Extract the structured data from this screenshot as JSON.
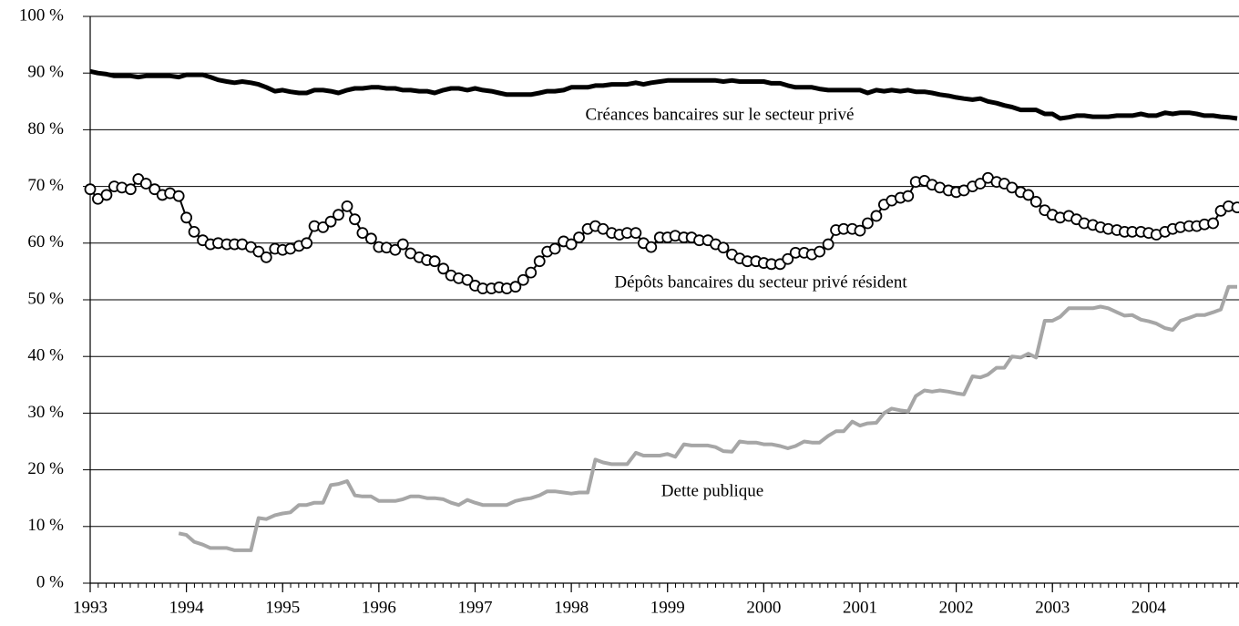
{
  "chart_data": {
    "type": "line",
    "x": [
      1993.0,
      1993.08,
      1993.17,
      1993.25,
      1993.33,
      1993.42,
      1993.5,
      1993.58,
      1993.67,
      1993.75,
      1993.83,
      1993.92,
      1994.0,
      1994.08,
      1994.17,
      1994.25,
      1994.33,
      1994.42,
      1994.5,
      1994.58,
      1994.67,
      1994.75,
      1994.83,
      1994.92,
      1995.0,
      1995.08,
      1995.17,
      1995.25,
      1995.33,
      1995.42,
      1995.5,
      1995.58,
      1995.67,
      1995.75,
      1995.83,
      1995.92,
      1996.0,
      1996.08,
      1996.17,
      1996.25,
      1996.33,
      1996.42,
      1996.5,
      1996.58,
      1996.67,
      1996.75,
      1996.83,
      1996.92,
      1997.0,
      1997.08,
      1997.17,
      1997.25,
      1997.33,
      1997.42,
      1997.5,
      1997.58,
      1997.67,
      1997.75,
      1997.83,
      1997.92,
      1998.0,
      1998.08,
      1998.17,
      1998.25,
      1998.33,
      1998.42,
      1998.5,
      1998.58,
      1998.67,
      1998.75,
      1998.83,
      1998.92,
      1999.0,
      1999.08,
      1999.17,
      1999.25,
      1999.33,
      1999.42,
      1999.5,
      1999.58,
      1999.67,
      1999.75,
      1999.83,
      1999.92,
      2000.0,
      2000.08,
      2000.17,
      2000.25,
      2000.33,
      2000.42,
      2000.5,
      2000.58,
      2000.67,
      2000.75,
      2000.83,
      2000.92,
      2001.0,
      2001.08,
      2001.17,
      2001.25,
      2001.33,
      2001.42,
      2001.5,
      2001.58,
      2001.67,
      2001.75,
      2001.83,
      2001.92,
      2002.0,
      2002.08,
      2002.17,
      2002.25,
      2002.33,
      2002.42,
      2002.5,
      2002.58,
      2002.67,
      2002.75,
      2002.83,
      2002.92,
      2003.0,
      2003.08,
      2003.17,
      2003.25,
      2003.33,
      2003.42,
      2003.5,
      2003.58,
      2003.67,
      2003.75,
      2003.83,
      2003.92,
      2004.0,
      2004.08,
      2004.17,
      2004.25,
      2004.33,
      2004.42,
      2004.5,
      2004.58,
      2004.67,
      2004.75,
      2004.83,
      2004.92
    ],
    "series": [
      {
        "name": "Créances bancaires sur le secteur privé",
        "color": "#000000",
        "values": [
          90.3,
          90,
          89.8,
          89.5,
          89.5,
          89.5,
          89.3,
          89.5,
          89.5,
          89.5,
          89.5,
          89.3,
          89.7,
          89.7,
          89.7,
          89.3,
          88.8,
          88.5,
          88.3,
          88.5,
          88.3,
          88,
          87.5,
          86.8,
          87,
          86.7,
          86.5,
          86.5,
          87,
          87,
          86.8,
          86.5,
          87,
          87.3,
          87.3,
          87.5,
          87.5,
          87.3,
          87.3,
          87,
          87,
          86.8,
          86.8,
          86.5,
          87,
          87.3,
          87.3,
          87,
          87.3,
          87,
          86.8,
          86.5,
          86.2,
          86.2,
          86.2,
          86.2,
          86.5,
          86.8,
          86.8,
          87,
          87.5,
          87.5,
          87.5,
          87.8,
          87.8,
          88,
          88,
          88,
          88.3,
          88,
          88.3,
          88.5,
          88.7,
          88.7,
          88.7,
          88.7,
          88.7,
          88.7,
          88.7,
          88.5,
          88.7,
          88.5,
          88.5,
          88.5,
          88.5,
          88.2,
          88.2,
          87.8,
          87.5,
          87.5,
          87.5,
          87.2,
          87,
          87,
          87,
          87,
          87,
          86.5,
          87,
          86.8,
          87,
          86.8,
          87,
          86.7,
          86.7,
          86.5,
          86.2,
          86,
          85.7,
          85.5,
          85.3,
          85.5,
          85,
          84.7,
          84.3,
          84,
          83.5,
          83.5,
          83.5,
          82.8,
          82.8,
          82,
          82.2,
          82.5,
          82.5,
          82.3,
          82.3,
          82.3,
          82.5,
          82.5,
          82.5,
          82.8,
          82.5,
          82.5,
          83,
          82.8,
          83,
          83,
          82.8,
          82.5,
          82.5,
          82.3,
          82.2,
          82
        ]
      },
      {
        "name": "Dépôts bancaires du secteur privé résident",
        "color": "#000000",
        "marker": "circle",
        "values": [
          69.5,
          67.8,
          68.5,
          70,
          69.8,
          69.5,
          71.3,
          70.5,
          69.5,
          68.5,
          68.8,
          68.3,
          64.5,
          62,
          60.5,
          59.8,
          60,
          59.8,
          59.8,
          59.8,
          59.3,
          58.5,
          57.5,
          59,
          58.8,
          59,
          59.5,
          60,
          63,
          62.8,
          63.8,
          65,
          66.5,
          64.2,
          61.8,
          60.8,
          59.3,
          59.2,
          58.8,
          59.8,
          58.2,
          57.5,
          57,
          56.8,
          55.5,
          54.3,
          53.8,
          53.5,
          52.5,
          52,
          52,
          52.2,
          52,
          52.3,
          53.5,
          54.8,
          56.8,
          58.5,
          59,
          60.3,
          59.8,
          61,
          62.5,
          63,
          62.5,
          61.8,
          61.5,
          61.8,
          61.8,
          60,
          59.3,
          61,
          61,
          61.3,
          61,
          61,
          60.5,
          60.5,
          59.8,
          59.2,
          58,
          57.3,
          56.8,
          56.8,
          56.5,
          56.3,
          56.3,
          57.2,
          58.3,
          58.3,
          58,
          58.5,
          59.8,
          62.3,
          62.5,
          62.5,
          62.2,
          63.5,
          64.8,
          66.8,
          67.5,
          68,
          68.3,
          70.8,
          71,
          70.3,
          69.8,
          69.3,
          69,
          69.3,
          70,
          70.5,
          71.5,
          70.8,
          70.5,
          69.8,
          69,
          68.5,
          67.3,
          65.8,
          65,
          64.5,
          64.8,
          64.2,
          63.5,
          63.2,
          62.8,
          62.5,
          62.3,
          62,
          62,
          62,
          61.8,
          61.5,
          62,
          62.5,
          62.8,
          63,
          63,
          63.3,
          63.5,
          65.7,
          66.5,
          66.3
        ]
      },
      {
        "name": "Dette publique",
        "color": "#a6a6a6",
        "values": [
          null,
          null,
          null,
          null,
          null,
          null,
          null,
          null,
          null,
          null,
          null,
          8.8,
          8.5,
          7.3,
          6.8,
          6.2,
          6.2,
          6.2,
          5.8,
          5.8,
          5.8,
          11.5,
          11.3,
          12,
          12.3,
          12.5,
          13.8,
          13.8,
          14.2,
          14.2,
          17.3,
          17.5,
          18,
          15.5,
          15.3,
          15.3,
          14.5,
          14.5,
          14.5,
          14.8,
          15.3,
          15.3,
          15,
          15,
          14.8,
          14.2,
          13.8,
          14.7,
          14.2,
          13.8,
          13.8,
          13.8,
          13.8,
          14.5,
          14.8,
          15,
          15.5,
          16.2,
          16.2,
          16,
          15.8,
          16,
          16,
          21.8,
          21.3,
          21,
          21,
          21,
          23,
          22.5,
          22.5,
          22.5,
          22.8,
          22.3,
          24.5,
          24.3,
          24.3,
          24.3,
          24,
          23.3,
          23.2,
          25,
          24.8,
          24.8,
          24.5,
          24.5,
          24.2,
          23.8,
          24.2,
          25,
          24.8,
          24.8,
          26,
          26.8,
          26.8,
          28.5,
          27.8,
          28.2,
          28.3,
          30,
          30.8,
          30.5,
          30.3,
          33,
          34,
          33.8,
          34,
          33.8,
          33.5,
          33.3,
          36.5,
          36.3,
          36.8,
          38,
          38,
          40,
          39.8,
          40.5,
          39.8,
          46.3,
          46.3,
          47,
          48.5,
          48.5,
          48.5,
          48.5,
          48.8,
          48.5,
          47.8,
          47.2,
          47.3,
          46.5,
          46.2,
          45.8,
          45,
          44.7,
          46.3,
          46.8,
          47.3,
          47.3,
          47.8,
          48.3,
          52.3,
          52.3
        ]
      }
    ],
    "xlim": [
      1993,
      2004.92
    ],
    "xticks": [
      1993,
      1994,
      1995,
      1996,
      1997,
      1998,
      1999,
      2000,
      2001,
      2002,
      2003,
      2004
    ],
    "ylim": [
      0,
      100
    ],
    "yticks": [
      {
        "value": 0,
        "label": "0 %"
      },
      {
        "value": 10,
        "label": "10 %"
      },
      {
        "value": 20,
        "label": "20 %"
      },
      {
        "value": 30,
        "label": "30 %"
      },
      {
        "value": 40,
        "label": "40 %"
      },
      {
        "value": 50,
        "label": "50 %"
      },
      {
        "value": 60,
        "label": "60 %"
      },
      {
        "value": 70,
        "label": "70 %"
      },
      {
        "value": 80,
        "label": "80 %"
      },
      {
        "value": 90,
        "label": "90 %"
      },
      {
        "value": 100,
        "label": "100 %"
      }
    ],
    "grid": true
  }
}
